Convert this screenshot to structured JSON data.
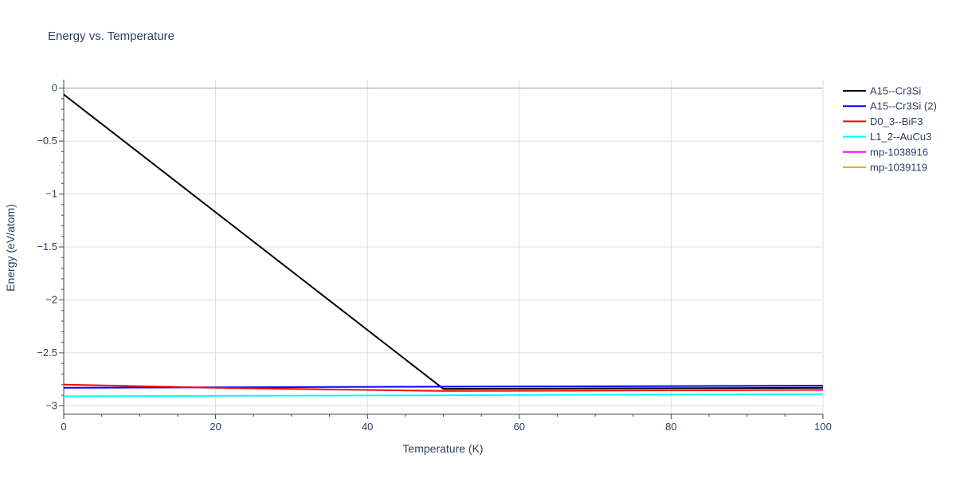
{
  "chart_data": {
    "type": "line",
    "title": "Energy vs. Temperature",
    "xlabel": "Temperature (K)",
    "ylabel": "Energy (eV/atom)",
    "xlim": [
      0,
      100
    ],
    "ylim": [
      -3.08,
      0.08
    ],
    "xticks": [
      0,
      20,
      40,
      60,
      80,
      100
    ],
    "xtick_labels": [
      "0",
      "20",
      "40",
      "60",
      "80",
      "100"
    ],
    "yticks": [
      0,
      -0.5,
      -1,
      -1.5,
      -2,
      -2.5,
      -3
    ],
    "ytick_labels": [
      "0",
      "−0.5",
      "−1",
      "−1.5",
      "−2",
      "−2.5",
      "−3"
    ],
    "grid": true,
    "legend_position": "top-right",
    "series": [
      {
        "name": "A15--Cr3Si",
        "color": "#000000",
        "x": [
          0,
          50,
          100
        ],
        "y": [
          -0.06,
          -2.84,
          -2.83
        ]
      },
      {
        "name": "A15--Cr3Si (2)",
        "color": "#0000ff",
        "x": [
          0,
          50,
          100
        ],
        "y": [
          -2.83,
          -2.82,
          -2.81
        ]
      },
      {
        "name": "D0_3--BiF3",
        "color": "#ff0000",
        "x": [
          0,
          20,
          50,
          100
        ],
        "y": [
          -2.8,
          -2.83,
          -2.86,
          -2.85
        ]
      },
      {
        "name": "L1_2--AuCu3",
        "color": "#00ffff",
        "x": [
          0,
          50,
          100
        ],
        "y": [
          -2.91,
          -2.9,
          -2.89
        ]
      },
      {
        "name": "mp-1038916",
        "color": "#ff00ff",
        "x": [],
        "y": []
      },
      {
        "name": "mp-1039119",
        "color": "#ffa500",
        "x": [],
        "y": []
      }
    ]
  }
}
